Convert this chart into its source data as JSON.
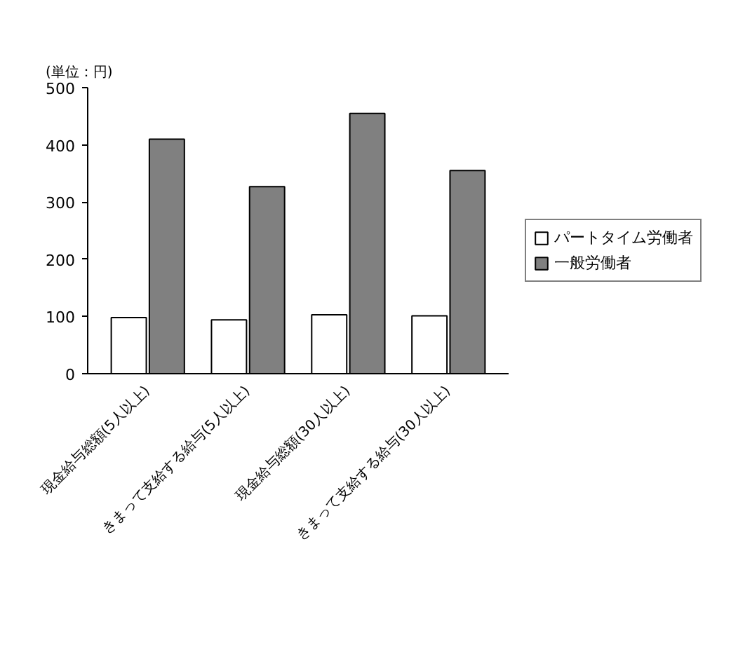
{
  "chart_data": {
    "type": "bar",
    "annotations": [
      "(単位：円)"
    ],
    "categories": [
      "現金給与総額(5人以上)",
      "きまって支給する給与(5人以上)",
      "現金給与総額(30人以上)",
      "きまって支給する給与(30人以上)"
    ],
    "series": [
      {
        "name": "パートタイム労働者",
        "color": "#ffffff",
        "values": [
          98,
          94,
          103,
          101
        ]
      },
      {
        "name": "一般労働者",
        "color": "#808080",
        "values": [
          410,
          327,
          455,
          355
        ]
      }
    ],
    "ylim": [
      0,
      500
    ],
    "yticks": [
      0,
      100,
      200,
      300,
      400,
      500
    ],
    "grid": false,
    "legend": "right"
  }
}
